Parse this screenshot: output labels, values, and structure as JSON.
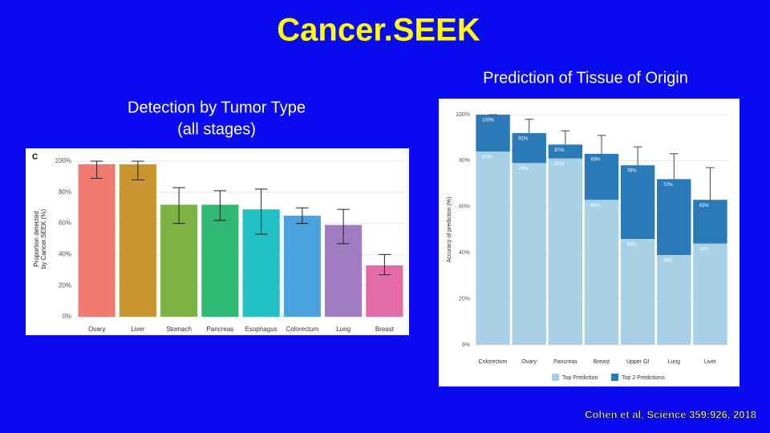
{
  "title": "Cancer.SEEK",
  "subtitle": "Prediction of Tissue of Origin",
  "citation": "Cohen et al, Science 359:926, 2018",
  "chart_data": [
    {
      "type": "bar",
      "title": [
        "Detection by Tumor Type",
        "(all stages)"
      ],
      "panel_label": "C",
      "ylabel": [
        "Proportion detected",
        "by Cancer.SEEK (%)"
      ],
      "categories": [
        "Ovary",
        "Liver",
        "Stomach",
        "Pancreas",
        "Esophagus",
        "Colorectum",
        "Lung",
        "Breast"
      ],
      "values": [
        98,
        98,
        72,
        72,
        69,
        65,
        59,
        33
      ],
      "ci_low": [
        89,
        88,
        60,
        62,
        53,
        60,
        47,
        27
      ],
      "ci_high": [
        100,
        100,
        83,
        81,
        82,
        70,
        69,
        40
      ],
      "colors": [
        "#f07a6f",
        "#c9952e",
        "#7cb342",
        "#2eb872",
        "#22c0c4",
        "#4aa3dc",
        "#a07cc0",
        "#e46ba8"
      ],
      "ylim": [
        0,
        100
      ],
      "yticks": [
        {
          "value": 0,
          "label": "0%"
        },
        {
          "value": 20,
          "label": "20%"
        },
        {
          "value": 40,
          "label": "40%"
        },
        {
          "value": 60,
          "label": "60%"
        },
        {
          "value": 80,
          "label": "80%"
        },
        {
          "value": 100,
          "label": "100%"
        }
      ],
      "grid": true
    },
    {
      "type": "stacked_bar",
      "ylabel": "Accuracy of prediction (%)",
      "categories": [
        "Colorectum",
        "Ovary",
        "Pancreas",
        "Breast",
        "Upper GI",
        "Lung",
        "Liver"
      ],
      "series": [
        {
          "name": "Top Prediction",
          "color": "#a8d1e6",
          "values": [
            84,
            79,
            81,
            63,
            46,
            39,
            44
          ],
          "value_labels": [
            "84%",
            "79%",
            "81%",
            "63%",
            "46%",
            "39%",
            "44%"
          ]
        },
        {
          "name": "Top 2 Predictions",
          "color": "#2a7ab8",
          "values": [
            16,
            13,
            6,
            20,
            32,
            33,
            19
          ]
        }
      ],
      "totals": {
        "values": [
          100,
          92,
          87,
          83,
          78,
          72,
          63
        ],
        "value_labels": [
          "100%",
          "92%",
          "87%",
          "83%",
          "78%",
          "72%",
          "63%"
        ],
        "ci_high": [
          100,
          98,
          93,
          91,
          86,
          83,
          77
        ]
      },
      "ylim": [
        0,
        100
      ],
      "yticks": [
        {
          "value": 0,
          "label": "0%"
        },
        {
          "value": 20,
          "label": "20%"
        },
        {
          "value": 40,
          "label": "40%"
        },
        {
          "value": 60,
          "label": "60%"
        },
        {
          "value": 80,
          "label": "80%"
        },
        {
          "value": 100,
          "label": "100%"
        }
      ],
      "grid": true,
      "legend": "bottom"
    }
  ]
}
